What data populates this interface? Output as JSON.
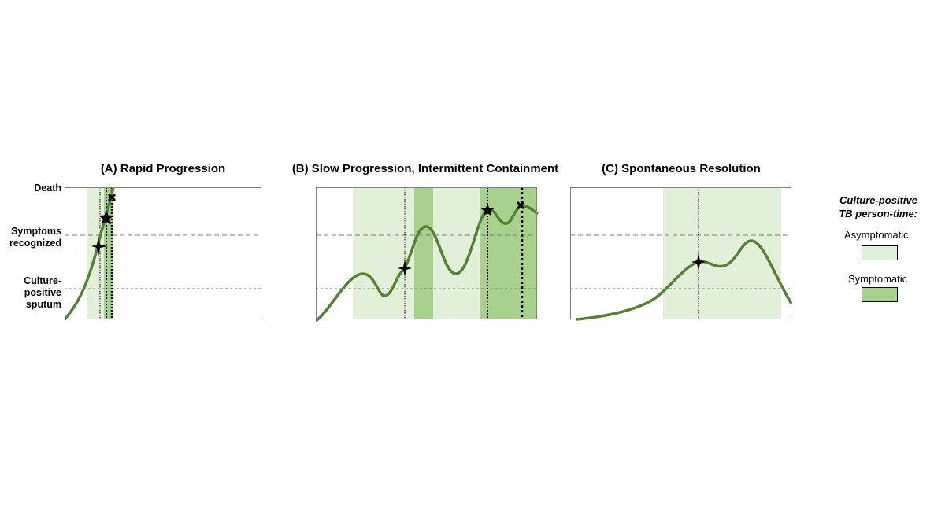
{
  "y_axis_labels": {
    "death": "Death",
    "symptoms_line1": "Symptoms",
    "symptoms_line2": "recognized",
    "culture_line1": "Culture-",
    "culture_line2": "positive",
    "culture_line3": "sputum"
  },
  "panels": {
    "a": {
      "title": "(A) Rapid Progression"
    },
    "b": {
      "title": "(B) Slow Progression, Intermittent Containment"
    },
    "c": {
      "title": "(C) Spontaneous Resolution"
    }
  },
  "legend": {
    "title_line1": "Culture-positive",
    "title_line2": "TB person-time:",
    "asymptomatic_label": "Asymptomatic",
    "symptomatic_label": "Symptomatic"
  },
  "colors": {
    "asymptomatic_fill": "#e2efd9",
    "symptomatic_fill": "#a9d18e",
    "curve": "#538135",
    "threshold_line": "#808080"
  }
}
